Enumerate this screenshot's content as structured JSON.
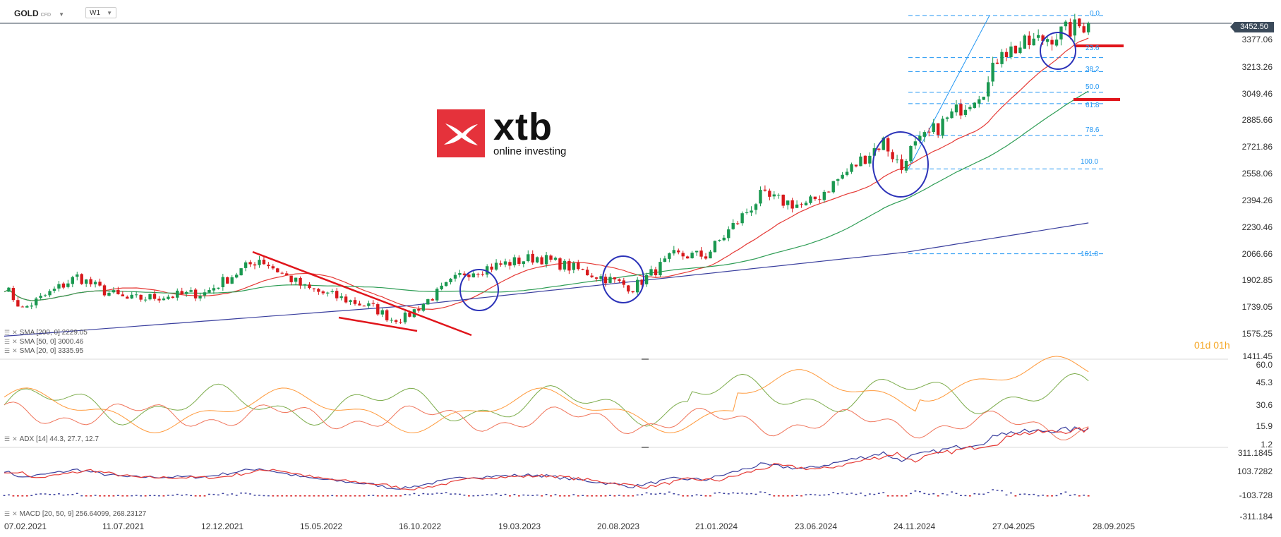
{
  "header": {
    "symbol": "GOLD",
    "symbol_type": "CFD",
    "timeframe": "W1"
  },
  "logo": {
    "name": "xtb",
    "tagline": "online investing",
    "color": "#e5323b"
  },
  "current_price": "3452.50",
  "countdown": "01d 01h",
  "price_axis": [
    "3377.06",
    "3213.26",
    "3049.46",
    "2885.66",
    "2721.86",
    "2558.06",
    "2394.26",
    "2230.46",
    "2066.66",
    "1902.85",
    "1739.05",
    "1575.25",
    "1411.45"
  ],
  "adx_axis": [
    "60.0",
    "45.3",
    "30.6",
    "15.9",
    "1.2"
  ],
  "macd_axis": [
    "311.1845",
    "103.7282",
    "-103.728",
    "-311.184"
  ],
  "x_axis": [
    "07.02.2021",
    "11.07.2021",
    "12.12.2021",
    "15.05.2022",
    "16.10.2022",
    "19.03.2023",
    "20.08.2023",
    "21.01.2024",
    "23.06.2024",
    "24.11.2024",
    "27.04.2025",
    "28.09.2025"
  ],
  "fib_levels": [
    "0.0",
    "23.6",
    "38.2",
    "50.0",
    "61.8",
    "78.6",
    "100.0",
    "161.8"
  ],
  "legends": {
    "sma200": "SMA [200, 0] 2229.05",
    "sma50": "SMA [50, 0] 3000.46",
    "sma20": "SMA [20, 0] 3335.95",
    "adx": "ADX [14] 44.3, 27.7, 12.7",
    "macd": "MACD [20, 50, 9] 256.64099, 268.23127"
  },
  "colors": {
    "up": "#1a9850",
    "down": "#d7191c",
    "sma20": "#e53935",
    "sma50": "#2e9d55",
    "sma200": "#3a3f9e",
    "fib": "#2196f3",
    "annotation_circle": "#2b32b8",
    "annotation_line": "#e0151b",
    "adx": "#7cac4b",
    "di_plus": "#ff9a3c",
    "di_minus": "#f0745a",
    "macd_line": "#3a3f9e",
    "signal_line": "#e53935"
  },
  "chart_data": {
    "type": "candlestick",
    "title": "GOLD",
    "timeframe": "W1",
    "y_range": [
      1411.45,
      3500
    ],
    "x_range": [
      "07.02.2021",
      "28.09.2025"
    ],
    "last_close": 3452.5,
    "price_anchors": [
      {
        "date": "07.02.2021",
        "price": 1840
      },
      {
        "date": "07.03.2021",
        "price": 1700
      },
      {
        "date": "30.05.2021",
        "price": 1900
      },
      {
        "date": "11.07.2021",
        "price": 1810
      },
      {
        "date": "15.08.2021",
        "price": 1760
      },
      {
        "date": "12.12.2021",
        "price": 1800
      },
      {
        "date": "06.03.2022",
        "price": 2010
      },
      {
        "date": "15.05.2022",
        "price": 1830
      },
      {
        "date": "28.08.2022",
        "price": 1710
      },
      {
        "date": "25.09.2022",
        "price": 1640
      },
      {
        "date": "16.10.2022",
        "price": 1650
      },
      {
        "date": "15.01.2023",
        "price": 1925
      },
      {
        "date": "19.03.2023",
        "price": 1980
      },
      {
        "date": "07.05.2023",
        "price": 2020
      },
      {
        "date": "20.08.2023",
        "price": 1890
      },
      {
        "date": "01.10.2023",
        "price": 1830
      },
      {
        "date": "03.12.2023",
        "price": 2030
      },
      {
        "date": "21.01.2024",
        "price": 2030
      },
      {
        "date": "14.04.2024",
        "price": 2390
      },
      {
        "date": "23.06.2024",
        "price": 2330
      },
      {
        "date": "20.10.2024",
        "price": 2730
      },
      {
        "date": "17.11.2024",
        "price": 2560
      },
      {
        "date": "24.11.2024",
        "price": 2650
      },
      {
        "date": "30.03.2025",
        "price": 3080
      },
      {
        "date": "20.04.2025",
        "price": 3320
      },
      {
        "date": "27.04.2025",
        "price": 3280
      },
      {
        "date": "31.08.2025",
        "price": 3452.5
      }
    ],
    "sma200_anchors": [
      {
        "date": "07.02.2021",
        "price": 1535
      },
      {
        "date": "16.10.2022",
        "price": 1720
      },
      {
        "date": "24.11.2024",
        "price": 2050
      },
      {
        "date": "31.08.2025",
        "price": 2229.05
      }
    ],
    "fibonacci": [
      {
        "level": "0.0",
        "price": 3500
      },
      {
        "level": "23.6",
        "price": 3242
      },
      {
        "level": "38.2",
        "price": 3157
      },
      {
        "level": "50.0",
        "price": 3030
      },
      {
        "level": "61.8",
        "price": 2960
      },
      {
        "level": "78.6",
        "price": 2765
      },
      {
        "level": "100.0",
        "price": 2560
      },
      {
        "level": "161.8",
        "price": 2040
      }
    ]
  }
}
